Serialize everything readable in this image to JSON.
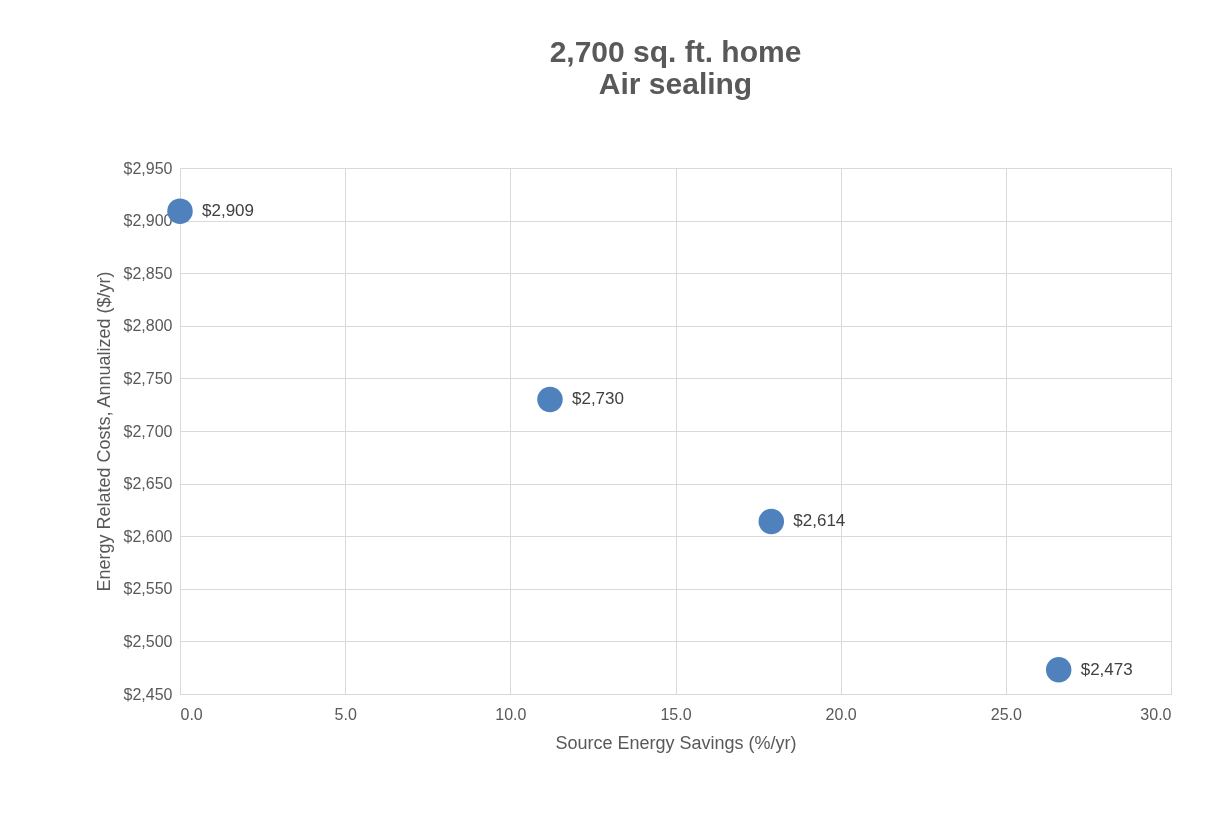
{
  "chart_data": {
    "type": "scatter",
    "title": "2,700 sq. ft. home\nAir sealing",
    "xlabel": "Source Energy Savings (%/yr)",
    "ylabel": "Energy Related Costs, Annualized ($/yr)",
    "x": [
      0.0,
      11.2,
      17.9,
      26.6
    ],
    "series": [
      {
        "color": "#4f81bd",
        "values": [
          2909,
          2730,
          2614,
          2473
        ],
        "value_labels": [
          "$2,909",
          "$2,730",
          "$2,614",
          "$2,473"
        ]
      }
    ],
    "xlim": [
      0,
      30
    ],
    "ylim": [
      2450,
      2950
    ],
    "xticks": [
      {
        "value": 0,
        "label": "0.0"
      },
      {
        "value": 5,
        "label": "5.0"
      },
      {
        "value": 10,
        "label": "10.0"
      },
      {
        "value": 15,
        "label": "15.0"
      },
      {
        "value": 20,
        "label": "20.0"
      },
      {
        "value": 25,
        "label": "25.0"
      },
      {
        "value": 30,
        "label": "30.0"
      }
    ],
    "yticks": [
      {
        "value": 2450,
        "label": "$2,450"
      },
      {
        "value": 2500,
        "label": "$2,500"
      },
      {
        "value": 2550,
        "label": "$2,550"
      },
      {
        "value": 2600,
        "label": "$2,600"
      },
      {
        "value": 2650,
        "label": "$2,650"
      },
      {
        "value": 2700,
        "label": "$2,700"
      },
      {
        "value": 2750,
        "label": "$2,750"
      },
      {
        "value": 2800,
        "label": "$2,800"
      },
      {
        "value": 2850,
        "label": "$2,850"
      },
      {
        "value": 2900,
        "label": "$2,900"
      },
      {
        "value": 2950,
        "label": "$2,950"
      }
    ],
    "grid": true,
    "marker": "circle"
  }
}
